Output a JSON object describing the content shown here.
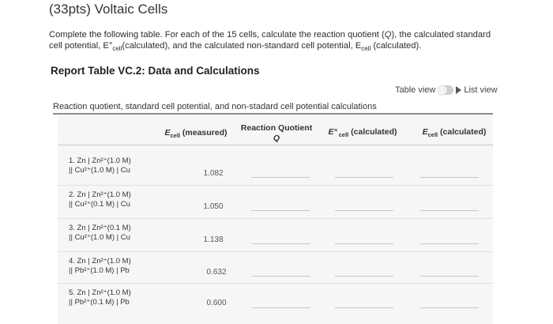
{
  "title": "(33pts) Voltaic Cells",
  "instructions": {
    "line1_a": "Complete the following table. For each of the 15 cells, calculate the reaction quotient (",
    "q_symbol": "Q",
    "line1_b": "), the calculated standard",
    "line2_a": "cell potential, E°",
    "cell_sub": "cell",
    "line2_b": "(calculated), and the calculated non-standard cell potential, E",
    "line2_c": " (calculated)."
  },
  "report_title": "Report Table VC.2: Data and Calculations",
  "view_toggle": {
    "table_label": "Table view",
    "list_label": "List view"
  },
  "table": {
    "caption": "Reaction quotient, standard cell potential, and non-stadard cell potential calculations",
    "headers": {
      "measured_E": "E",
      "measured_sub": "cell",
      "measured_suffix": " (measured)",
      "quotient_line1": "Reaction Quotient",
      "quotient_line2": "Q",
      "std_E": "E°",
      "std_sub": " cell",
      "std_suffix": " (calculated)",
      "nonstd_E": "E",
      "nonstd_sub": "cell",
      "nonstd_suffix": " (calculated)"
    },
    "rows": [
      {
        "line1": "1. Zn | Zn²⁺(1.0 M)",
        "line2": "|| Cu²⁺(1.0 M) | Cu",
        "measured": "1.082"
      },
      {
        "line1": "2. Zn | Zn²⁺(1.0 M)",
        "line2": "|| Cu²⁺(0.1 M) | Cu",
        "measured": "1.050"
      },
      {
        "line1": "3. Zn | Zn²⁺(0.1 M)",
        "line2": "|| Cu²⁺(1.0 M) | Cu",
        "measured": "1.138"
      },
      {
        "line1": "4. Zn | Zn²⁺(1.0 M)",
        "line2": "|| Pb²⁺(1.0 M) | Pb",
        "measured": "0.632"
      },
      {
        "line1": "5. Zn | Zn²⁺(1.0 M)",
        "line2": "|| Pb²⁺(0.1 M) | Pb",
        "measured": "0.600"
      }
    ]
  }
}
